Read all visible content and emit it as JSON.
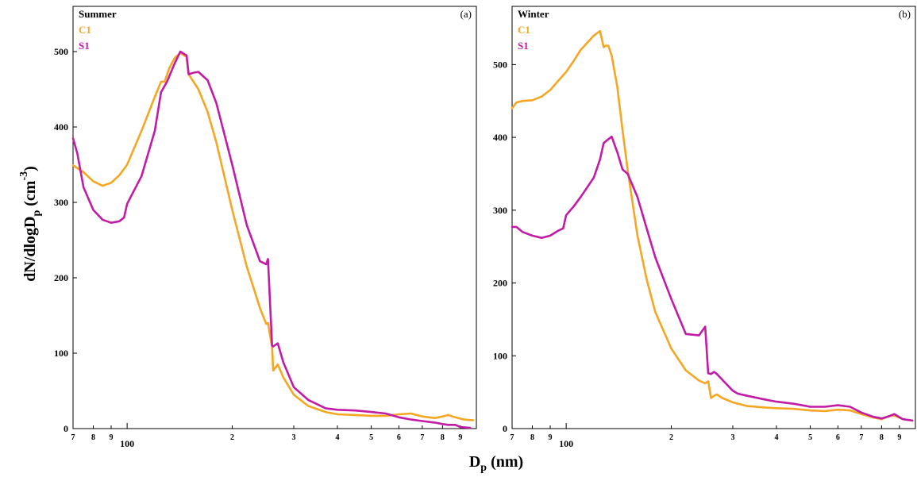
{
  "colors": {
    "C1": "#F5A623",
    "S1": "#C21BA6",
    "axis": "#000000"
  },
  "axis_titles": {
    "y": {
      "main": "dN/dlogD",
      "sub": "p",
      "unit_open": " (cm",
      "sup": "-3",
      "unit_close": ")"
    },
    "x": {
      "main": "D",
      "sub": "p",
      "unit": " (nm)"
    }
  },
  "chart_data": [
    {
      "type": "line",
      "panel_label": "(a)",
      "title": "Summer",
      "xscale": "log",
      "xlim": [
        70,
        1000
      ],
      "ylim": [
        0,
        560
      ],
      "yticks": [
        0,
        100,
        200,
        300,
        400,
        500
      ],
      "xticks": [
        {
          "value": 70,
          "label": "7"
        },
        {
          "value": 80,
          "label": "8"
        },
        {
          "value": 90,
          "label": "9"
        },
        {
          "value": 100,
          "label": "100",
          "major": true
        },
        {
          "value": 200,
          "label": "2"
        },
        {
          "value": 300,
          "label": "3"
        },
        {
          "value": 400,
          "label": "4"
        },
        {
          "value": 500,
          "label": "5"
        },
        {
          "value": 600,
          "label": "6"
        },
        {
          "value": 700,
          "label": "7"
        },
        {
          "value": 800,
          "label": "8"
        },
        {
          "value": 900,
          "label": "9"
        }
      ],
      "series": [
        {
          "name": "C1",
          "x": [
            70,
            75,
            80,
            85,
            90,
            95,
            100,
            110,
            120,
            125,
            128,
            132,
            137,
            142,
            148,
            150,
            160,
            170,
            180,
            200,
            220,
            240,
            250,
            253,
            260,
            262,
            270,
            280,
            300,
            330,
            370,
            400,
            450,
            500,
            550,
            600,
            650,
            700,
            760,
            800,
            830,
            870,
            920,
            980
          ],
          "y": [
            349,
            340,
            328,
            322,
            326,
            336,
            350,
            395,
            440,
            460,
            460,
            478,
            492,
            498,
            493,
            470,
            450,
            420,
            380,
            290,
            215,
            160,
            139,
            140,
            108,
            77,
            85,
            68,
            45,
            30,
            22,
            19,
            18,
            17,
            17,
            19,
            20,
            16,
            14,
            16,
            18,
            15,
            12,
            11
          ]
        },
        {
          "name": "S1",
          "x": [
            70,
            72,
            75,
            80,
            85,
            90,
            95,
            98,
            100,
            110,
            120,
            125,
            130,
            137,
            142,
            148,
            150,
            155,
            160,
            170,
            180,
            200,
            220,
            240,
            250,
            253,
            260,
            262,
            270,
            280,
            300,
            330,
            370,
            400,
            450,
            500,
            550,
            600,
            650,
            700,
            760,
            800,
            830,
            870,
            900,
            960
          ],
          "y": [
            385,
            365,
            320,
            290,
            277,
            273,
            275,
            280,
            298,
            335,
            395,
            446,
            460,
            485,
            500,
            495,
            470,
            472,
            473,
            462,
            432,
            350,
            270,
            222,
            218,
            225,
            110,
            109,
            113,
            88,
            55,
            38,
            27,
            25,
            24,
            22,
            20,
            15,
            12,
            10,
            8,
            6,
            5,
            5,
            2,
            1
          ]
        }
      ]
    },
    {
      "type": "line",
      "panel_label": "(b)",
      "title": "Winter",
      "xscale": "log",
      "xlim": [
        70,
        1000
      ],
      "ylim": [
        0,
        580
      ],
      "yticks": [
        0,
        100,
        200,
        300,
        400,
        500
      ],
      "xticks": [
        {
          "value": 70,
          "label": "7"
        },
        {
          "value": 80,
          "label": "8"
        },
        {
          "value": 90,
          "label": "9"
        },
        {
          "value": 100,
          "label": "100",
          "major": true
        },
        {
          "value": 200,
          "label": "2"
        },
        {
          "value": 300,
          "label": "3"
        },
        {
          "value": 400,
          "label": "4"
        },
        {
          "value": 500,
          "label": "5"
        },
        {
          "value": 600,
          "label": "6"
        },
        {
          "value": 700,
          "label": "7"
        },
        {
          "value": 800,
          "label": "8"
        },
        {
          "value": 900,
          "label": "9"
        }
      ],
      "series": [
        {
          "name": "C1",
          "x": [
            70,
            72,
            75,
            80,
            85,
            90,
            95,
            100,
            105,
            110,
            120,
            125,
            128,
            130,
            132,
            135,
            140,
            145,
            150,
            160,
            170,
            180,
            200,
            220,
            240,
            250,
            255,
            260,
            265,
            270,
            280,
            300,
            330,
            370,
            400,
            450,
            500,
            550,
            600,
            650,
            700,
            760,
            800,
            840,
            870,
            920,
            980
          ],
          "y": [
            440,
            448,
            450,
            451,
            456,
            465,
            478,
            490,
            505,
            520,
            540,
            546,
            524,
            526,
            526,
            512,
            470,
            410,
            355,
            265,
            205,
            160,
            110,
            80,
            66,
            62,
            65,
            42,
            45,
            47,
            42,
            36,
            31,
            29,
            28,
            27,
            25,
            24,
            26,
            25,
            20,
            15,
            13,
            17,
            18,
            13,
            11
          ]
        },
        {
          "name": "S1",
          "x": [
            70,
            72,
            75,
            80,
            85,
            90,
            95,
            98,
            100,
            105,
            110,
            120,
            125,
            128,
            130,
            135,
            138,
            140,
            145,
            150,
            160,
            170,
            180,
            200,
            220,
            240,
            250,
            255,
            260,
            265,
            270,
            280,
            300,
            310,
            330,
            370,
            400,
            450,
            500,
            550,
            600,
            650,
            700,
            760,
            800,
            840,
            870,
            920,
            980
          ],
          "y": [
            277,
            277,
            270,
            265,
            262,
            265,
            272,
            275,
            293,
            305,
            318,
            345,
            370,
            392,
            395,
            401,
            388,
            380,
            356,
            350,
            318,
            275,
            235,
            178,
            130,
            128,
            140,
            76,
            75,
            78,
            75,
            67,
            52,
            48,
            45,
            40,
            37,
            34,
            30,
            30,
            32,
            30,
            22,
            16,
            14,
            17,
            20,
            13,
            11
          ]
        }
      ]
    }
  ]
}
